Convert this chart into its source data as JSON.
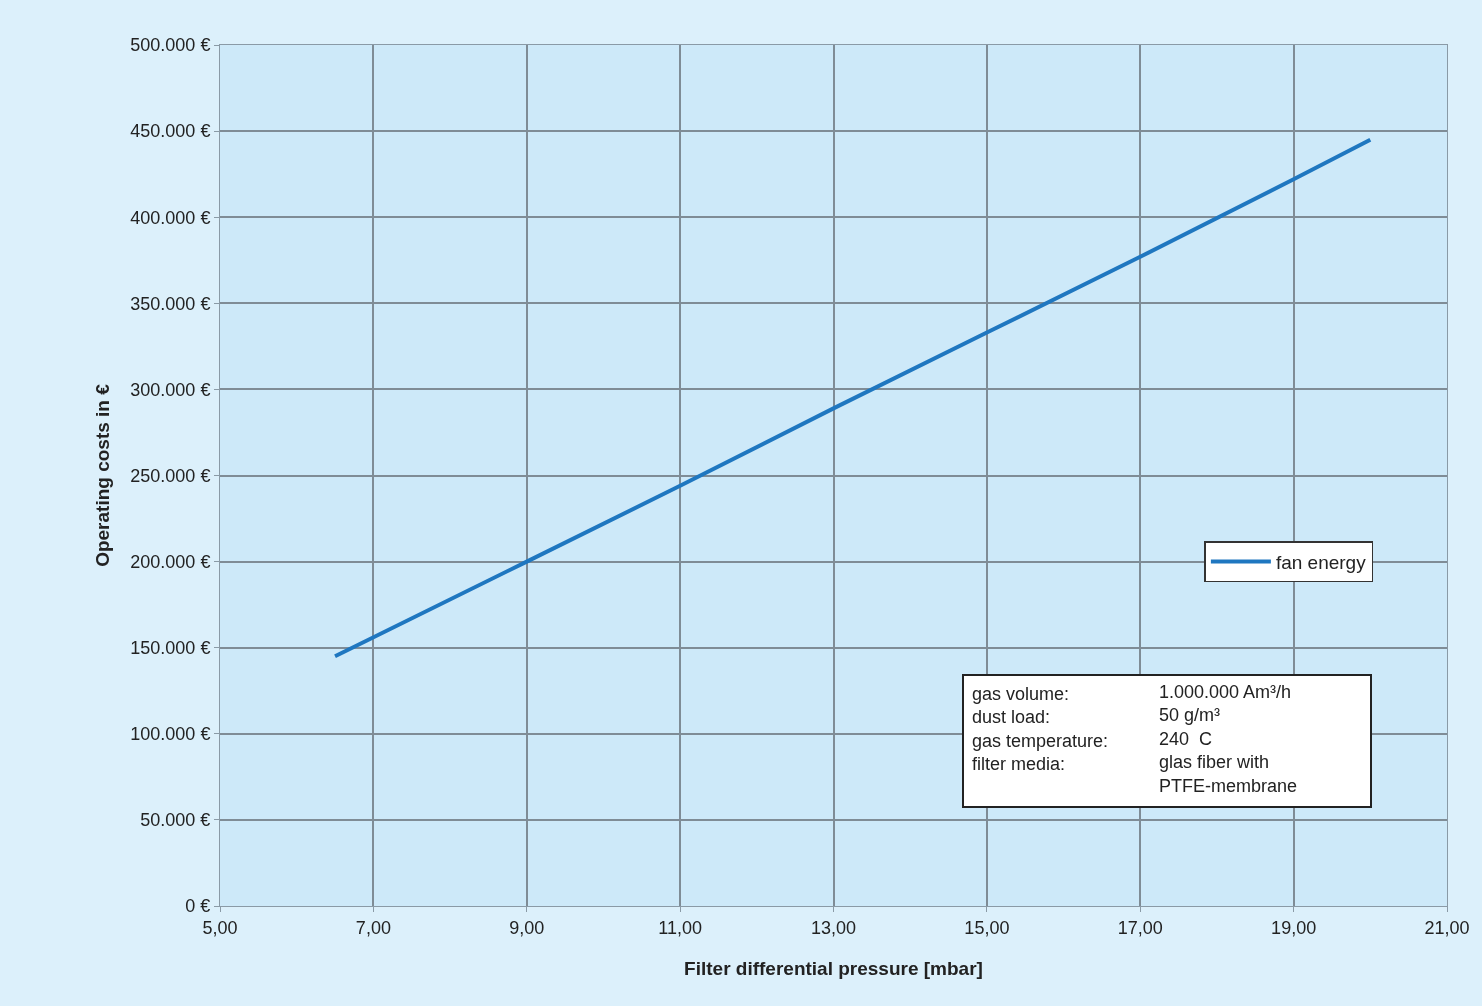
{
  "chart_data": {
    "type": "line",
    "xlabel": "Filter differential pressure [mbar]",
    "ylabel": "Operating costs in €",
    "x": [
      6.5,
      9,
      11,
      13,
      15,
      17,
      19,
      20
    ],
    "series": [
      {
        "name": "fan energy",
        "color": "#1f77c0",
        "values": [
          145000,
          200000,
          244000,
          289000,
          333000,
          377000,
          422000,
          445000
        ]
      }
    ],
    "xlim": [
      5,
      21
    ],
    "xticks": [
      {
        "value": 5,
        "label": "5,00"
      },
      {
        "value": 7,
        "label": "7,00"
      },
      {
        "value": 9,
        "label": "9,00"
      },
      {
        "value": 11,
        "label": "11,00"
      },
      {
        "value": 13,
        "label": "13,00"
      },
      {
        "value": 15,
        "label": "15,00"
      },
      {
        "value": 17,
        "label": "17,00"
      },
      {
        "value": 19,
        "label": "19,00"
      },
      {
        "value": 21,
        "label": "21,00"
      }
    ],
    "ylim": [
      0,
      500000
    ],
    "yticks": [
      {
        "value": 0,
        "label": "0 €"
      },
      {
        "value": 50000,
        "label": "50.000 €"
      },
      {
        "value": 100000,
        "label": "100.000 €"
      },
      {
        "value": 150000,
        "label": "150.000 €"
      },
      {
        "value": 200000,
        "label": "200.000 €"
      },
      {
        "value": 250000,
        "label": "250.000 €"
      },
      {
        "value": 300000,
        "label": "300.000 €"
      },
      {
        "value": 350000,
        "label": "350.000 €"
      },
      {
        "value": 400000,
        "label": "400.000 €"
      },
      {
        "value": 450000,
        "label": "450.000 €"
      },
      {
        "value": 500000,
        "label": "500.000 €"
      }
    ],
    "grid": true,
    "legend": "right",
    "marker": "none",
    "line_style": "solid",
    "annotations": [
      "gas volume:\ndust load:\ngas temperature:\nfilter media:\n ",
      "1.000.000 Am³/h\n50 g/m³\n240  C\nglas fiber with\nPTFE-membrane"
    ]
  }
}
